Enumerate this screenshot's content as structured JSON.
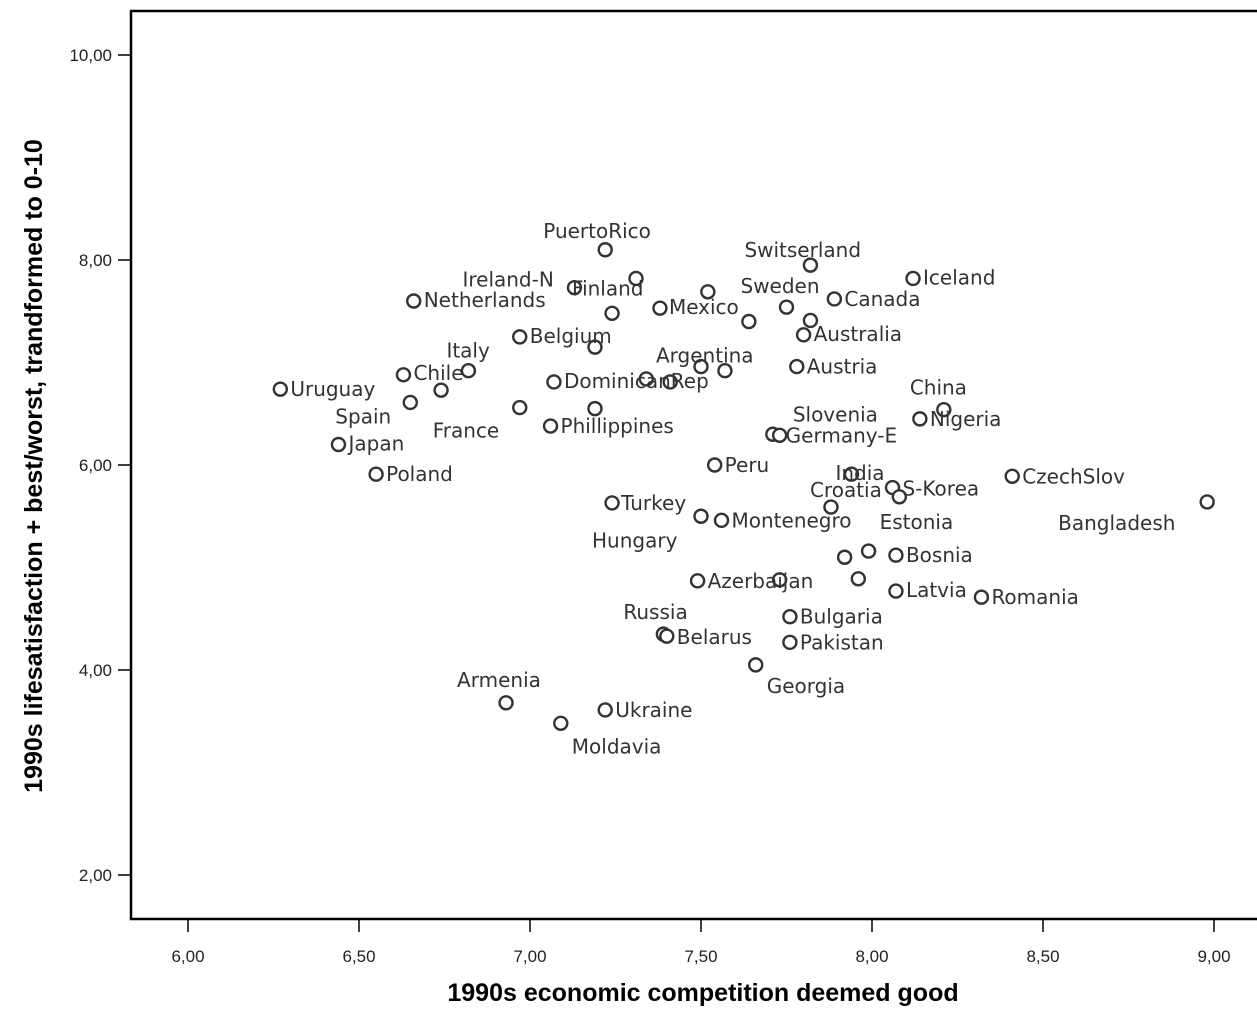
{
  "chart_data": {
    "type": "scatter",
    "xlabel": "1990s economic competition deemed good",
    "ylabel": "1990s lifesatisfaction + best/worst, trandformed to 0-10",
    "xlim": [
      5.85,
      9.1
    ],
    "ylim": [
      1.55,
      10.45
    ],
    "x_ticks": [
      "6,00",
      "6,50",
      "7,00",
      "7,50",
      "8,00",
      "8,50",
      "9,00"
    ],
    "y_ticks": [
      "2,00",
      "4,00",
      "6,00",
      "8,00",
      "10,00"
    ],
    "grid": false,
    "points": [
      {
        "label": "PuertoRico",
        "x": 7.22,
        "y": 8.1
      },
      {
        "label": "Switserland",
        "x": 7.82,
        "y": 7.95
      },
      {
        "label": "Iceland",
        "x": 8.12,
        "y": 7.82
      },
      {
        "label": "Ireland-N",
        "x": 7.13,
        "y": 7.73
      },
      {
        "label": "Finland",
        "x": 7.31,
        "y": 7.82
      },
      {
        "label": "Netherlands",
        "x": 6.66,
        "y": 7.6
      },
      {
        "label": "Mexico",
        "x": 7.38,
        "y": 7.53
      },
      {
        "label": "Sweden",
        "x": 7.75,
        "y": 7.54
      },
      {
        "label": "Canada",
        "x": 7.89,
        "y": 7.62
      },
      {
        "label": "Australia",
        "x": 7.8,
        "y": 7.27
      },
      {
        "label": "Belgium",
        "x": 6.97,
        "y": 7.25
      },
      {
        "label": "Italy",
        "x": 6.82,
        "y": 6.92
      },
      {
        "label": "Chile",
        "x": 6.63,
        "y": 6.88
      },
      {
        "label": "Uruguay",
        "x": 6.27,
        "y": 6.74
      },
      {
        "label": "Argentina",
        "x": 7.5,
        "y": 6.96
      },
      {
        "label": "Austria",
        "x": 7.78,
        "y": 6.96
      },
      {
        "label": "DominicanRep",
        "x": 7.07,
        "y": 6.81
      },
      {
        "label": "China",
        "x": 8.21,
        "y": 6.54
      },
      {
        "label": "Nigeria",
        "x": 8.14,
        "y": 6.45
      },
      {
        "label": "Slovenia",
        "x": 7.71,
        "y": 6.3
      },
      {
        "label": "Germany-E",
        "x": 7.73,
        "y": 6.29
      },
      {
        "label": "Spain",
        "x": 6.65,
        "y": 6.61
      },
      {
        "label": "Japan",
        "x": 6.44,
        "y": 6.2
      },
      {
        "label": "France",
        "x": 6.97,
        "y": 6.56
      },
      {
        "label": "Phillippines",
        "x": 7.06,
        "y": 6.38
      },
      {
        "label": "Poland",
        "x": 6.55,
        "y": 5.91
      },
      {
        "label": "Peru",
        "x": 7.54,
        "y": 6.0
      },
      {
        "label": "India",
        "x": 7.94,
        "y": 5.91
      },
      {
        "label": "S-Korea",
        "x": 8.06,
        "y": 5.78
      },
      {
        "label": "CzechSlov",
        "x": 8.41,
        "y": 5.89
      },
      {
        "label": "Bangladesh",
        "x": 8.98,
        "y": 5.64
      },
      {
        "label": "Croatia",
        "x": 7.88,
        "y": 5.59
      },
      {
        "label": "Turkey",
        "x": 7.24,
        "y": 5.63
      },
      {
        "label": "Hungary",
        "x": 7.5,
        "y": 5.5
      },
      {
        "label": "Montenegro",
        "x": 7.56,
        "y": 5.46
      },
      {
        "label": "Estonia",
        "x": 7.99,
        "y": 5.16
      },
      {
        "label": "Bosnia",
        "x": 8.07,
        "y": 5.12
      },
      {
        "label": "Azerbaijan",
        "x": 7.49,
        "y": 4.87
      },
      {
        "label": "Latvia",
        "x": 8.07,
        "y": 4.77
      },
      {
        "label": "Romania",
        "x": 8.32,
        "y": 4.71
      },
      {
        "label": "Russia",
        "x": 7.39,
        "y": 4.35
      },
      {
        "label": "Belarus",
        "x": 7.4,
        "y": 4.33
      },
      {
        "label": "Bulgaria",
        "x": 7.76,
        "y": 4.52
      },
      {
        "label": "Pakistan",
        "x": 7.76,
        "y": 4.27
      },
      {
        "label": "Georgia",
        "x": 7.66,
        "y": 4.05
      },
      {
        "label": "Armenia",
        "x": 6.93,
        "y": 3.68
      },
      {
        "label": "Ukraine",
        "x": 7.22,
        "y": 3.61
      },
      {
        "label": "Moldavia",
        "x": 7.09,
        "y": 3.48
      },
      {
        "label": "",
        "x": 7.52,
        "y": 7.69
      },
      {
        "label": "",
        "x": 7.64,
        "y": 7.4
      },
      {
        "label": "",
        "x": 7.82,
        "y": 7.41
      },
      {
        "label": "",
        "x": 7.24,
        "y": 7.48
      },
      {
        "label": "",
        "x": 7.19,
        "y": 7.15
      },
      {
        "label": "",
        "x": 7.57,
        "y": 6.92
      },
      {
        "label": "",
        "x": 7.34,
        "y": 6.84
      },
      {
        "label": "",
        "x": 7.41,
        "y": 6.81
      },
      {
        "label": "",
        "x": 6.74,
        "y": 6.73
      },
      {
        "label": "",
        "x": 7.19,
        "y": 6.55
      },
      {
        "label": "",
        "x": 8.08,
        "y": 5.69
      },
      {
        "label": "",
        "x": 7.92,
        "y": 5.1
      },
      {
        "label": "",
        "x": 7.73,
        "y": 4.88
      },
      {
        "label": "",
        "x": 7.96,
        "y": 4.89
      }
    ]
  }
}
